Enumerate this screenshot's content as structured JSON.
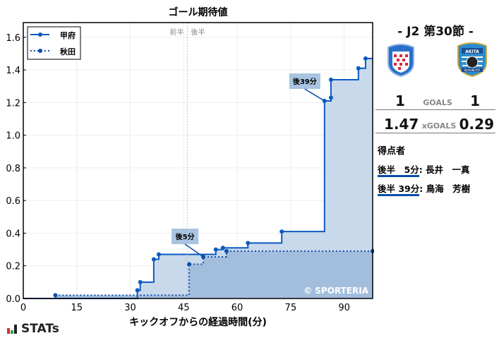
{
  "chart_data": {
    "type": "line",
    "title": "ゴール期待値",
    "xlabel": "キックオフからの経過時間(分)",
    "ylabel": "",
    "xlim": [
      0,
      98
    ],
    "ylim": [
      0,
      1.69
    ],
    "xticks": [
      0,
      15,
      30,
      45,
      60,
      75,
      90
    ],
    "yticks": [
      0.0,
      0.2,
      0.4,
      0.6,
      0.8,
      1.0,
      1.2,
      1.4,
      1.6
    ],
    "grid": true,
    "legend_position": "top-left",
    "halftime_labels": [
      "前半",
      "後半"
    ],
    "halftime_minute": 46,
    "watermark": "© SPORTERIA",
    "series": [
      {
        "name": "甲府",
        "style": "solid",
        "color": "#0a5bbf",
        "fill": "#c9d9ec",
        "points": [
          [
            0,
            0
          ],
          [
            32,
            0.05
          ],
          [
            32.8,
            0.1
          ],
          [
            36.6,
            0.24
          ],
          [
            38,
            0.27
          ],
          [
            54,
            0.3
          ],
          [
            56,
            0.31
          ],
          [
            63,
            0.34
          ],
          [
            72.5,
            0.41
          ],
          [
            84.5,
            1.21
          ],
          [
            86.3,
            1.23
          ],
          [
            86.3,
            1.34
          ],
          [
            94,
            1.41
          ],
          [
            96,
            1.47
          ]
        ],
        "end": 98
      },
      {
        "name": "秋田",
        "style": "dotted",
        "color": "#0a4ea8",
        "fill": "#a3bedd",
        "points": [
          [
            0,
            0
          ],
          [
            9,
            0.02
          ],
          [
            46.5,
            0.21
          ],
          [
            50.5,
            0.255
          ],
          [
            57,
            0.29
          ],
          [
            98,
            0.29
          ]
        ],
        "end": 98
      }
    ],
    "annotations": [
      {
        "text": "後5分",
        "x": 50.5,
        "y": 0.255
      },
      {
        "text": "後39分",
        "x": 84.5,
        "y": 1.21
      }
    ]
  },
  "side": {
    "match": "-  J2 第30節  -",
    "home_goals": "1",
    "away_goals": "1",
    "goals_label": "GOALS",
    "home_xg": "1.47",
    "away_xg": "0.29",
    "xg_label": "xGOALS",
    "scorers_title": "得点者",
    "scorers": [
      {
        "time": "後半　5分",
        "name": ": 長井　一真"
      },
      {
        "time": "後半 39分",
        "name": ": 鳥海　芳樹"
      }
    ],
    "away_logo_text": [
      "AKITA",
      "BLAUBLITZ"
    ]
  },
  "brand": "STATs"
}
